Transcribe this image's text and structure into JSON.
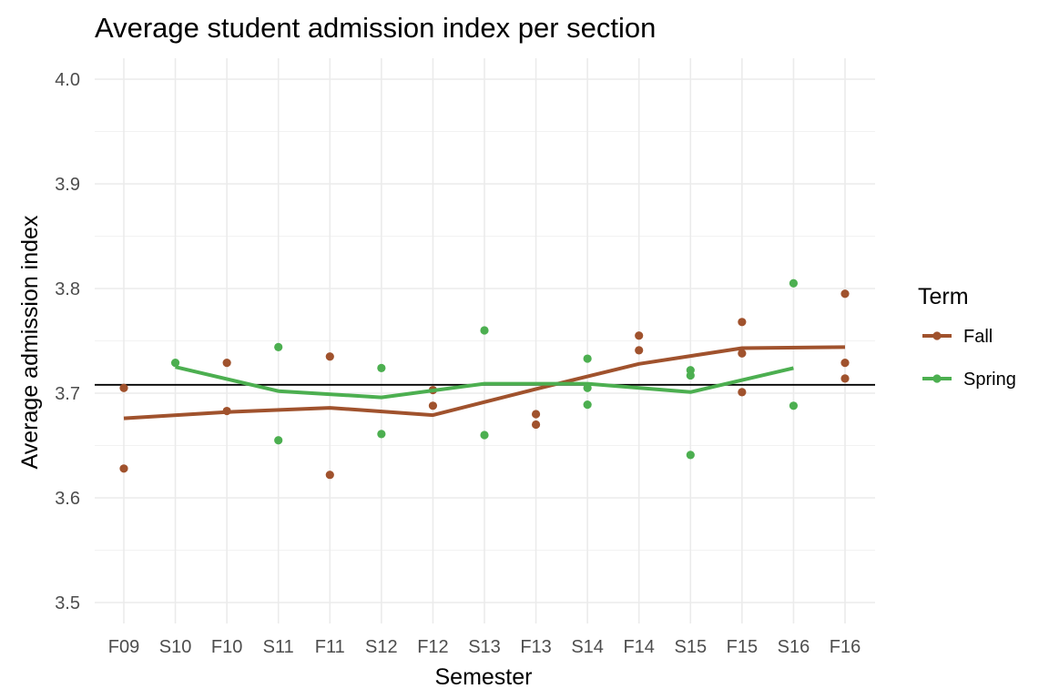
{
  "chart_data": {
    "type": "line",
    "title": "Average student admission index per section",
    "xlabel": "Semester",
    "ylabel": "Average admission index",
    "categories": [
      "F09",
      "S10",
      "F10",
      "S11",
      "F11",
      "S12",
      "F12",
      "S13",
      "F13",
      "S14",
      "F14",
      "S15",
      "F15",
      "S16",
      "F16"
    ],
    "ylim": [
      3.48,
      4.02
    ],
    "yticks": [
      "3.5",
      "3.6",
      "3.7",
      "3.8",
      "3.9",
      "4.0"
    ],
    "grid": true,
    "legend": {
      "title": "Term",
      "position": "right"
    },
    "reference_line": {
      "y": 3.708,
      "color": "#000000"
    },
    "series": [
      {
        "name": "Fall",
        "color": "#a0522d",
        "points": [
          {
            "x": "F09",
            "y": 3.705
          },
          {
            "x": "F09",
            "y": 3.628
          },
          {
            "x": "F10",
            "y": 3.729
          },
          {
            "x": "F10",
            "y": 3.683
          },
          {
            "x": "F11",
            "y": 3.735
          },
          {
            "x": "F11",
            "y": 3.622
          },
          {
            "x": "F12",
            "y": 3.703
          },
          {
            "x": "F12",
            "y": 3.688
          },
          {
            "x": "F13",
            "y": 3.68
          },
          {
            "x": "F13",
            "y": 3.67
          },
          {
            "x": "F14",
            "y": 3.755
          },
          {
            "x": "F14",
            "y": 3.741
          },
          {
            "x": "F15",
            "y": 3.768
          },
          {
            "x": "F15",
            "y": 3.738
          },
          {
            "x": "F15",
            "y": 3.701
          },
          {
            "x": "F16",
            "y": 3.795
          },
          {
            "x": "F16",
            "y": 3.729
          },
          {
            "x": "F16",
            "y": 3.714
          }
        ],
        "smooth": [
          {
            "x": "F09",
            "y": 3.676
          },
          {
            "x": "F10",
            "y": 3.682
          },
          {
            "x": "F11",
            "y": 3.686
          },
          {
            "x": "F12",
            "y": 3.679
          },
          {
            "x": "F13",
            "y": 3.704
          },
          {
            "x": "F14",
            "y": 3.728
          },
          {
            "x": "F15",
            "y": 3.743
          },
          {
            "x": "F16",
            "y": 3.744
          }
        ]
      },
      {
        "name": "Spring",
        "color": "#4caf50",
        "points": [
          {
            "x": "S10",
            "y": 3.729
          },
          {
            "x": "S11",
            "y": 3.744
          },
          {
            "x": "S11",
            "y": 3.655
          },
          {
            "x": "S12",
            "y": 3.724
          },
          {
            "x": "S12",
            "y": 3.661
          },
          {
            "x": "S13",
            "y": 3.76
          },
          {
            "x": "S13",
            "y": 3.66
          },
          {
            "x": "S14",
            "y": 3.733
          },
          {
            "x": "S14",
            "y": 3.705
          },
          {
            "x": "S14",
            "y": 3.689
          },
          {
            "x": "S15",
            "y": 3.722
          },
          {
            "x": "S15",
            "y": 3.717
          },
          {
            "x": "S15",
            "y": 3.641
          },
          {
            "x": "S16",
            "y": 3.805
          },
          {
            "x": "S16",
            "y": 3.688
          }
        ],
        "smooth": [
          {
            "x": "S10",
            "y": 3.725
          },
          {
            "x": "S11",
            "y": 3.702
          },
          {
            "x": "S12",
            "y": 3.696
          },
          {
            "x": "S13",
            "y": 3.709
          },
          {
            "x": "S14",
            "y": 3.709
          },
          {
            "x": "S15",
            "y": 3.701
          },
          {
            "x": "S16",
            "y": 3.724
          }
        ]
      }
    ]
  }
}
